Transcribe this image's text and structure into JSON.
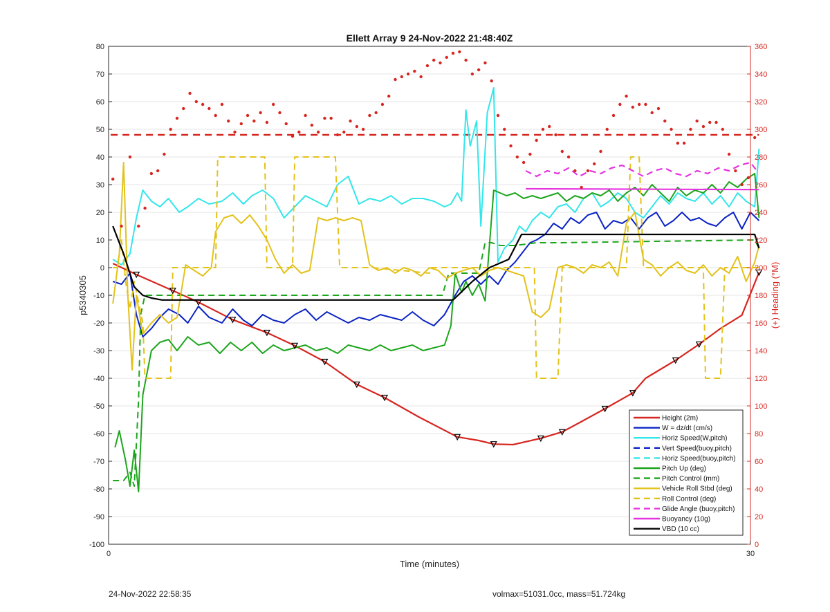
{
  "footer": {
    "timestamp": "24-Nov-2022 22:58:35",
    "vol_mass": "volmax=51031.0cc, mass=51.724kg"
  },
  "chart_data": {
    "type": "line",
    "title": "Ellett Array 9 24-Nov-2022 21:48:40Z",
    "xlabel": "Time (minutes)",
    "ylabel": "p5340305",
    "y2label": "(+) Heading (°M)",
    "xlim": [
      0,
      30
    ],
    "ylim": [
      -100,
      80
    ],
    "y2lim": [
      0,
      360
    ],
    "xticks": [
      "0",
      "30"
    ],
    "yticks": [
      "80",
      "70",
      "60",
      "50",
      "40",
      "30",
      "20",
      "10",
      "0",
      "-10",
      "-20",
      "-30",
      "-40",
      "-50",
      "-60",
      "-70",
      "-80",
      "-90",
      "-100"
    ],
    "y2ticks": [
      "360",
      "340",
      "320",
      "300",
      "280",
      "260",
      "240",
      "220",
      "200",
      "180",
      "160",
      "140",
      "120",
      "100",
      "80",
      "60",
      "40",
      "20",
      "0"
    ],
    "grid": true,
    "legend_position": "bottom-right",
    "colors": {
      "red": "#d62620",
      "blue": "#0b23c4",
      "cyan": "#33e6ea",
      "green": "#1ca51c",
      "yellow": "#e3c21a",
      "magenta": "#e633e0",
      "black": "#000000",
      "axis_right": "#d62620"
    },
    "series": [
      {
        "name": "Height (2m)",
        "color": "#d62620",
        "dash": false,
        "width": 2.2,
        "x": [
          0.2,
          1.3,
          3,
          4.2,
          5.8,
          7.4,
          8.7,
          10.1,
          11.6,
          12.9,
          14.5,
          16.3,
          17.3,
          18.0,
          18.9,
          20.2,
          21.2,
          22.0,
          23.2,
          24.5,
          25.1,
          26.5,
          27.6,
          28.6,
          29.6,
          30.4
        ],
        "y": [
          1.5,
          -2.5,
          -8.3,
          -12.5,
          -18.8,
          -23.5,
          -28.2,
          -34.0,
          -42.2,
          -47.0,
          -54.0,
          -61.2,
          -62.5,
          -63.8,
          -64.0,
          -61.7,
          -59.4,
          -56.1,
          -51.0,
          -45.3,
          -40.0,
          -33.5,
          -27.7,
          -22.0,
          -17.2,
          -1.7
        ]
      },
      {
        "name": "W = dz/dt (cm/s)",
        "color": "#0b23c4",
        "dash": false,
        "width": 2,
        "x": [
          0.2,
          0.6,
          1.0,
          1.3,
          1.6,
          2.0,
          2.4,
          2.8,
          3.3,
          3.7,
          4.2,
          4.7,
          5.3,
          5.8,
          6.3,
          6.7,
          7.2,
          7.7,
          8.2,
          8.7,
          9.2,
          9.7,
          10.2,
          10.7,
          11.2,
          11.7,
          12.2,
          12.7,
          13.2,
          13.7,
          14.2,
          14.7,
          15.2,
          15.7,
          16.2,
          16.6,
          17.0,
          17.4,
          17.8,
          18.2,
          18.6,
          19.0,
          19.4,
          19.7,
          20.0,
          20.4,
          20.8,
          21.2,
          21.6,
          22.0,
          22.4,
          22.8,
          23.2,
          23.6,
          24.0,
          24.4,
          24.8,
          25.2,
          25.6,
          26.0,
          26.4,
          26.8,
          27.2,
          27.6,
          28.0,
          28.4,
          28.8,
          29.2,
          29.6,
          30.0,
          30.4
        ],
        "y": [
          -5,
          -6,
          -2,
          -17,
          -25,
          -22,
          -18,
          -15,
          -17,
          -20,
          -14,
          -18,
          -20,
          -15,
          -19,
          -21,
          -17,
          -19,
          -20,
          -17,
          -15,
          -19,
          -16,
          -18,
          -20,
          -18,
          -19,
          -17,
          -18,
          -19,
          -16,
          -19,
          -21,
          -17,
          -10,
          -5,
          -3,
          -6,
          -3,
          -6,
          -1,
          2,
          6,
          9,
          10,
          12,
          16,
          14,
          18,
          16,
          19,
          20,
          14,
          17,
          16,
          18,
          14,
          18,
          20,
          15,
          17,
          20,
          17,
          18,
          16,
          15,
          18,
          20,
          14,
          20,
          17
        ]
      },
      {
        "name": "Horiz Speed(W,pitch)",
        "color": "#33e6ea",
        "dash": false,
        "width": 2,
        "x": [
          0.2,
          0.6,
          1.0,
          1.3,
          1.6,
          2.0,
          2.4,
          2.8,
          3.3,
          3.7,
          4.2,
          4.7,
          5.3,
          5.8,
          6.3,
          6.7,
          7.2,
          7.7,
          8.2,
          8.7,
          9.2,
          9.7,
          10.2,
          10.7,
          11.2,
          11.7,
          12.2,
          12.7,
          13.2,
          13.7,
          14.2,
          14.7,
          15.2,
          15.7,
          16.0,
          16.3,
          16.5,
          16.7,
          16.9,
          17.2,
          17.4,
          17.7,
          18.0,
          18.2,
          18.5,
          18.9,
          19.2,
          19.5,
          19.8,
          20.2,
          20.6,
          21.0,
          21.4,
          21.8,
          22.2,
          22.6,
          23.0,
          23.4,
          23.8,
          24.2,
          24.6,
          25.0,
          25.4,
          25.8,
          26.2,
          26.6,
          27.0,
          27.4,
          27.8,
          28.2,
          28.6,
          29.0,
          29.4,
          29.8,
          30.2,
          30.4
        ],
        "y": [
          3,
          1,
          5,
          18,
          28,
          24,
          22,
          25,
          20,
          22,
          25,
          23,
          24,
          27,
          23,
          26,
          28,
          25,
          18,
          22,
          26,
          24,
          22,
          30,
          33,
          23,
          25,
          24,
          26,
          23,
          25,
          25,
          24,
          22,
          23,
          27,
          24,
          57,
          44,
          53,
          15,
          56,
          65,
          2,
          7,
          10,
          15,
          13,
          17,
          20,
          18,
          22,
          23,
          20,
          25,
          27,
          22,
          24,
          27,
          25,
          20,
          18,
          22,
          26,
          23,
          27,
          25,
          24,
          27,
          23,
          26,
          22,
          27,
          24,
          22,
          43
        ]
      },
      {
        "name": "Vert Speed(buoy,pitch)",
        "color": "#0b23c4",
        "dash": true,
        "width": 2,
        "x": [],
        "y": []
      },
      {
        "name": "Horiz Speed(buoy,pitch)",
        "color": "#33e6ea",
        "dash": true,
        "width": 2,
        "x": [],
        "y": []
      },
      {
        "name": "Pitch Up (deg)",
        "color": "#1ca51c",
        "dash": false,
        "width": 2,
        "x": [
          0.3,
          0.5,
          0.8,
          1.0,
          1.2,
          1.4,
          1.6,
          2.0,
          2.4,
          2.8,
          3.2,
          3.7,
          4.2,
          4.7,
          5.2,
          5.7,
          6.2,
          6.7,
          7.2,
          7.7,
          8.2,
          8.7,
          9.2,
          9.7,
          10.2,
          10.7,
          11.2,
          11.7,
          12.2,
          12.7,
          13.2,
          13.7,
          14.2,
          14.7,
          15.2,
          15.7,
          16.0,
          16.2,
          16.5,
          16.7,
          17.0,
          17.3,
          17.6,
          18.0,
          18.3,
          18.6,
          19.0,
          19.4,
          19.8,
          20.2,
          20.6,
          21.0,
          21.4,
          21.8,
          22.2,
          22.6,
          23.0,
          23.4,
          23.8,
          24.2,
          24.6,
          25.0,
          25.4,
          25.8,
          26.2,
          26.6,
          27.0,
          27.4,
          27.8,
          28.2,
          28.6,
          29.0,
          29.4,
          29.8,
          30.2,
          30.4
        ],
        "y": [
          -65,
          -59,
          -70,
          -79,
          -66,
          -81,
          -46,
          -30,
          -27,
          -26,
          -30,
          -25,
          -28,
          -27,
          -31,
          -27,
          -30,
          -27,
          -31,
          -28,
          -30,
          -29,
          -28,
          -30,
          -29,
          -31,
          -28,
          -29,
          -30,
          -28,
          -30,
          -29,
          -28,
          -30,
          -29,
          -28,
          -21,
          -2,
          -9,
          -5,
          -10,
          -6,
          -12,
          28,
          27,
          26,
          27,
          25,
          26,
          25,
          26,
          27,
          24,
          26,
          25,
          27,
          26,
          28,
          24,
          27,
          29,
          26,
          30,
          27,
          24,
          29,
          26,
          28,
          27,
          30,
          27,
          31,
          29,
          32,
          34,
          18
        ]
      },
      {
        "name": "Pitch Control (mm)",
        "color": "#1ca51c",
        "dash": true,
        "width": 2,
        "x": [
          0.2,
          0.7,
          1.0,
          1.2,
          1.4,
          1.5,
          1.7,
          15.6,
          15.9,
          16.2,
          16.8,
          17.3,
          17.6,
          17.9,
          18.3,
          19.0,
          20.0,
          21.0,
          30.2,
          30.4
        ],
        "y": [
          -77,
          -77,
          -74,
          -79,
          -48,
          -17,
          -10,
          -10,
          -2,
          -2,
          -2,
          -2,
          9,
          9,
          8,
          8,
          9,
          9,
          10,
          7
        ]
      },
      {
        "name": "Vehicle Roll Stbd (deg)",
        "color": "#e3c21a",
        "dash": false,
        "width": 2,
        "x": [
          0.2,
          0.5,
          0.7,
          0.9,
          1.1,
          1.3,
          1.6,
          2.0,
          2.4,
          2.8,
          3.2,
          3.6,
          4.0,
          4.4,
          4.8,
          5.0,
          5.4,
          5.8,
          6.2,
          6.6,
          7.0,
          7.4,
          7.8,
          8.2,
          8.6,
          9.0,
          9.4,
          9.8,
          10.2,
          10.6,
          11.0,
          11.4,
          11.8,
          12.2,
          12.6,
          13.0,
          13.4,
          13.8,
          14.2,
          14.6,
          15.0,
          15.4,
          15.8,
          16.2,
          16.6,
          17.0,
          17.4,
          17.8,
          18.2,
          18.6,
          19.0,
          19.4,
          19.8,
          20.2,
          20.6,
          21.0,
          21.4,
          21.8,
          22.2,
          22.6,
          23.0,
          23.4,
          23.8,
          24.2,
          24.6,
          25.0,
          25.4,
          25.8,
          26.2,
          26.6,
          27.0,
          27.4,
          27.8,
          28.2,
          28.6,
          29.0,
          29.4,
          29.8,
          30.2,
          30.4
        ],
        "y": [
          -13,
          5,
          38,
          -10,
          -37,
          -10,
          -24,
          -20,
          -17,
          -20,
          -18,
          1,
          -1,
          -3,
          0,
          13,
          18,
          19,
          16,
          19,
          15,
          10,
          3,
          -2,
          1,
          -2,
          -1,
          18,
          17,
          18,
          17,
          18,
          17,
          1,
          -1,
          0,
          -2,
          0,
          -1,
          -3,
          0,
          -1,
          -4,
          -2,
          -1,
          0,
          -3,
          -1,
          0,
          -1,
          -2,
          -3,
          -16,
          -18,
          -15,
          0,
          1,
          0,
          -2,
          1,
          0,
          2,
          -3,
          16,
          20,
          3,
          1,
          -3,
          0,
          2,
          -1,
          -2,
          1,
          -3,
          0,
          -2,
          4,
          -5,
          2,
          8
        ]
      },
      {
        "name": "Roll Control (deg)",
        "color": "#e3c21a",
        "dash": true,
        "width": 2,
        "x": [
          0.2,
          0.4,
          0.6,
          0.8,
          1.0,
          1.2,
          1.6,
          1.7,
          2.9,
          3.0,
          5.0,
          5.1,
          7.3,
          7.4,
          8.6,
          8.7,
          10.6,
          10.8,
          12.2,
          12.3,
          15.0,
          15.1,
          19.9,
          20.0,
          20.5,
          20.6,
          21.0,
          21.2,
          24.2,
          24.4,
          24.8,
          25.0,
          25.6,
          25.8,
          27.8,
          27.9,
          28.6,
          28.8,
          29.6,
          29.8,
          30.4
        ],
        "y": [
          0,
          0,
          10,
          -5,
          -15,
          -5,
          -20,
          -40,
          -40,
          0,
          0,
          40,
          40,
          0,
          0,
          40,
          40,
          0,
          0,
          0,
          -2,
          0,
          0,
          -40,
          -40,
          -40,
          -40,
          0,
          0,
          40,
          40,
          0,
          0,
          0,
          0,
          -40,
          -40,
          0,
          0,
          0,
          0
        ]
      },
      {
        "name": "Glide Angle (buoy,pitch)",
        "color": "#e633e0",
        "dash": true,
        "width": 2.2,
        "x": [
          19.5,
          20.0,
          20.5,
          21.0,
          21.5,
          22.0,
          22.5,
          23.0,
          23.5,
          24.0,
          24.5,
          25.0,
          25.5,
          26.0,
          26.5,
          27.0,
          27.5,
          28.0,
          28.5,
          29.0,
          29.5,
          30.0,
          30.3
        ],
        "y": [
          35,
          33,
          35,
          34,
          36,
          33,
          35,
          34,
          36,
          37,
          35,
          33,
          35,
          36,
          34,
          33,
          35,
          34,
          36,
          35,
          37,
          38,
          35
        ]
      },
      {
        "name": "Buoyancy (10g)",
        "color": "#e633e0",
        "dash": false,
        "width": 2.2,
        "x": [
          19.5,
          30.4
        ],
        "y": [
          28.5,
          28.2
        ]
      },
      {
        "name": "VBD (10 cc)",
        "color": "#000000",
        "dash": false,
        "width": 2.2,
        "x": [
          0.2,
          0.7,
          1.2,
          1.6,
          2.0,
          2.5,
          3.0,
          16.1,
          17.0,
          17.8,
          18.7,
          19.3,
          30.2,
          30.4
        ],
        "y": [
          15,
          5,
          -7,
          -10,
          -11,
          -11.7,
          -11.7,
          -11.7,
          -5,
          0,
          3,
          12,
          12,
          7
        ]
      }
    ],
    "heading": {
      "name": "(+) Heading (°M)",
      "color": "#d62620",
      "reference_level": 296,
      "x": [
        0.2,
        0.6,
        1.0,
        1.4,
        1.7,
        2.0,
        2.3,
        2.6,
        2.9,
        3.2,
        3.5,
        3.8,
        4.1,
        4.4,
        4.7,
        5.0,
        5.3,
        5.6,
        5.9,
        6.2,
        6.5,
        6.8,
        7.1,
        7.4,
        7.7,
        8.0,
        8.3,
        8.6,
        8.9,
        9.2,
        9.5,
        9.8,
        10.1,
        10.4,
        10.7,
        11.0,
        11.3,
        11.6,
        11.9,
        12.2,
        12.5,
        12.8,
        13.1,
        13.4,
        13.7,
        14.0,
        14.3,
        14.6,
        14.9,
        15.2,
        15.5,
        15.8,
        16.1,
        16.4,
        16.7,
        17.0,
        17.3,
        17.6,
        17.9,
        18.2,
        18.5,
        18.8,
        19.1,
        19.4,
        19.7,
        20.0,
        20.3,
        20.6,
        20.9,
        21.2,
        21.5,
        21.8,
        22.1,
        22.4,
        22.7,
        23.0,
        23.3,
        23.6,
        23.9,
        24.2,
        24.5,
        24.8,
        25.1,
        25.4,
        25.7,
        26.0,
        26.3,
        26.6,
        26.9,
        27.2,
        27.5,
        27.8,
        28.1,
        28.4,
        28.7,
        29.0,
        29.3,
        29.6,
        29.9,
        30.2
      ],
      "y": [
        264,
        230,
        280,
        230,
        243,
        268,
        270,
        282,
        300,
        308,
        315,
        326,
        320,
        318,
        315,
        310,
        318,
        306,
        298,
        304,
        310,
        306,
        312,
        305,
        318,
        312,
        304,
        295,
        298,
        310,
        303,
        298,
        308,
        308,
        296,
        298,
        306,
        302,
        300,
        310,
        312,
        318,
        324,
        336,
        338,
        340,
        342,
        338,
        346,
        350,
        348,
        352,
        355,
        356,
        350,
        340,
        343,
        348,
        335,
        310,
        300,
        288,
        280,
        276,
        282,
        292,
        300,
        302,
        296,
        284,
        280,
        270,
        258,
        270,
        275,
        284,
        300,
        310,
        318,
        324,
        316,
        318,
        318,
        312,
        315,
        306,
        300,
        290,
        290,
        300,
        306,
        302,
        305,
        305,
        300,
        282,
        270,
        260,
        265,
        294
      ]
    },
    "triangles": {
      "color": "#000000",
      "x": [
        1.3,
        3.0,
        4.2,
        5.8,
        7.4,
        8.7,
        10.1,
        11.6,
        12.9,
        16.3,
        18.0,
        20.2,
        21.2,
        23.2,
        24.5,
        26.5,
        27.6,
        30.4
      ],
      "y": [
        -2.5,
        -8.3,
        -12.5,
        -18.8,
        -23.5,
        -28.2,
        -34.0,
        -42.2,
        -47.0,
        -61.2,
        -63.8,
        -61.7,
        -59.4,
        -51.0,
        -45.3,
        -33.5,
        -27.7,
        -1.7
      ]
    }
  }
}
